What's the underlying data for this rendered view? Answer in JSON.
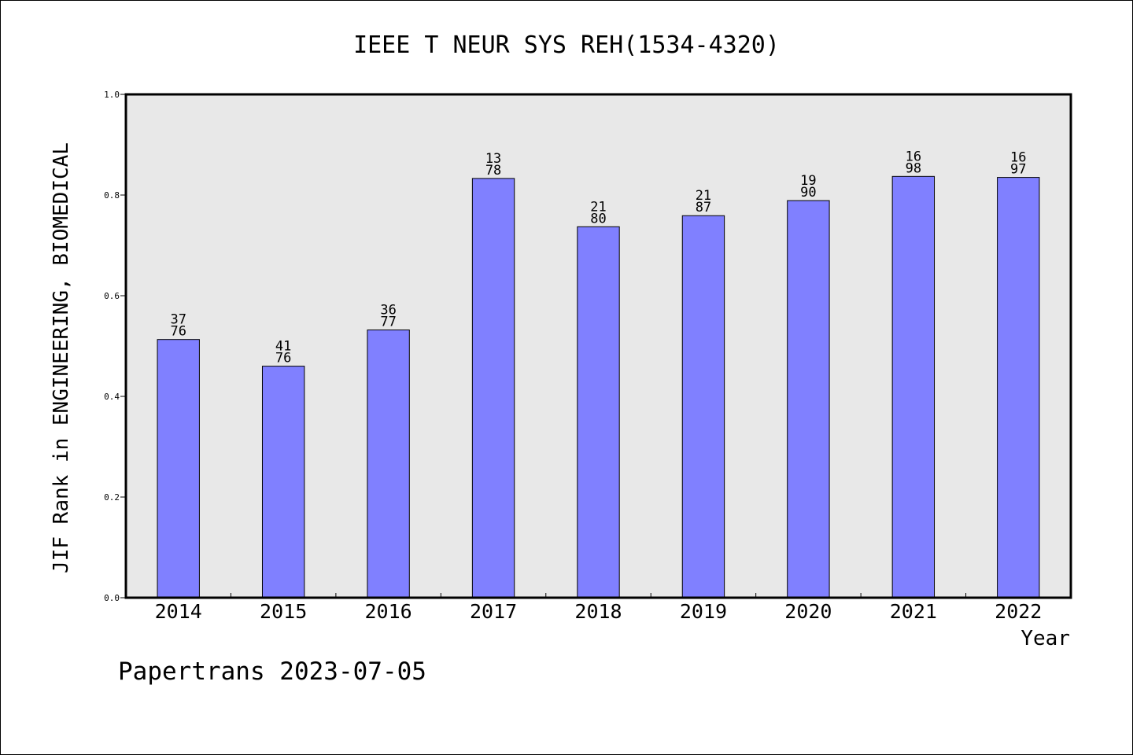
{
  "chart_data": {
    "type": "bar",
    "title": "IEEE T NEUR SYS REH(1534-4320)",
    "xlabel": "Year",
    "ylabel": "JIF Rank in ENGINEERING, BIOMEDICAL",
    "categories": [
      "2014",
      "2015",
      "2016",
      "2017",
      "2018",
      "2019",
      "2020",
      "2021",
      "2022"
    ],
    "values": [
      0.513,
      0.46,
      0.532,
      0.833,
      0.737,
      0.759,
      0.789,
      0.837,
      0.835
    ],
    "bar_labels": [
      {
        "top": "37",
        "bottom": "76"
      },
      {
        "top": "41",
        "bottom": "76"
      },
      {
        "top": "36",
        "bottom": "77"
      },
      {
        "top": "13",
        "bottom": "78"
      },
      {
        "top": "21",
        "bottom": "80"
      },
      {
        "top": "21",
        "bottom": "87"
      },
      {
        "top": "19",
        "bottom": "90"
      },
      {
        "top": "16",
        "bottom": "98"
      },
      {
        "top": "16",
        "bottom": "97"
      }
    ],
    "ylim": [
      0,
      1.0
    ],
    "yticks": [
      "0.0",
      "0.2",
      "0.4",
      "0.6",
      "0.8",
      "1.0"
    ],
    "grid": false,
    "colors": {
      "bar": "#8080ff",
      "plot_bg": "#e8e8e8",
      "bar_edge": "#000000"
    }
  },
  "footer": {
    "text": "Papertrans 2023-07-05"
  }
}
